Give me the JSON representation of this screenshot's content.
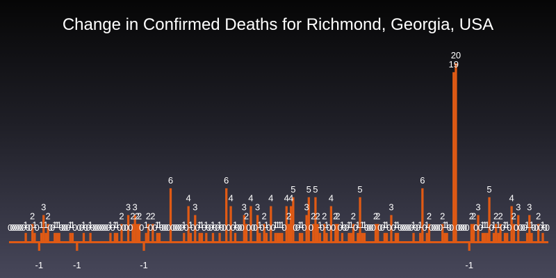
{
  "chart_data": {
    "type": "bar",
    "title": "Change in Confirmed Deaths for Richmond, Georgia, USA",
    "xlabel": "",
    "ylabel": "",
    "ylim": [
      -3,
      20
    ],
    "grid": false,
    "legend": "none",
    "bar_color": "#e05a14",
    "values": [
      0,
      0,
      0,
      0,
      0,
      0,
      0,
      1,
      0,
      0,
      2,
      1,
      0,
      -1,
      1,
      3,
      1,
      2,
      0,
      0,
      1,
      1,
      1,
      0,
      0,
      0,
      0,
      1,
      1,
      0,
      -1,
      0,
      0,
      1,
      0,
      0,
      1,
      0,
      0,
      0,
      0,
      0,
      0,
      0,
      0,
      1,
      0,
      1,
      1,
      0,
      2,
      0,
      0,
      3,
      0,
      2,
      3,
      2,
      2,
      0,
      -1,
      1,
      2,
      0,
      2,
      0,
      1,
      1,
      0,
      0,
      0,
      0,
      6,
      0,
      0,
      0,
      0,
      0,
      1,
      0,
      4,
      1,
      0,
      3,
      0,
      1,
      1,
      0,
      1,
      0,
      0,
      1,
      0,
      0,
      1,
      0,
      0,
      6,
      0,
      4,
      0,
      1,
      0,
      0,
      0,
      3,
      2,
      0,
      4,
      0,
      0,
      3,
      1,
      0,
      2,
      1,
      0,
      4,
      0,
      1,
      1,
      1,
      1,
      0,
      4,
      2,
      4,
      5,
      0,
      0,
      1,
      1,
      0,
      3,
      5,
      0,
      2,
      5,
      2,
      1,
      0,
      2,
      1,
      0,
      4,
      0,
      2,
      2,
      0,
      1,
      0,
      0,
      1,
      1,
      2,
      0,
      1,
      5,
      1,
      1,
      0,
      0,
      0,
      0,
      2,
      2,
      0,
      0,
      1,
      1,
      0,
      3,
      0,
      1,
      1,
      0,
      0,
      0,
      0,
      0,
      0,
      1,
      0,
      0,
      1,
      6,
      0,
      1,
      2,
      0,
      0,
      0,
      0,
      0,
      2,
      1,
      1,
      0,
      0,
      19,
      20,
      0,
      0,
      0,
      0,
      0,
      -1,
      2,
      2,
      0,
      3,
      0,
      1,
      1,
      1,
      5,
      0,
      1,
      2,
      1,
      2,
      0,
      1,
      1,
      0,
      4,
      2,
      0,
      3,
      0,
      0,
      0,
      1,
      3,
      1,
      0,
      0,
      2,
      0,
      1,
      0,
      0
    ]
  }
}
